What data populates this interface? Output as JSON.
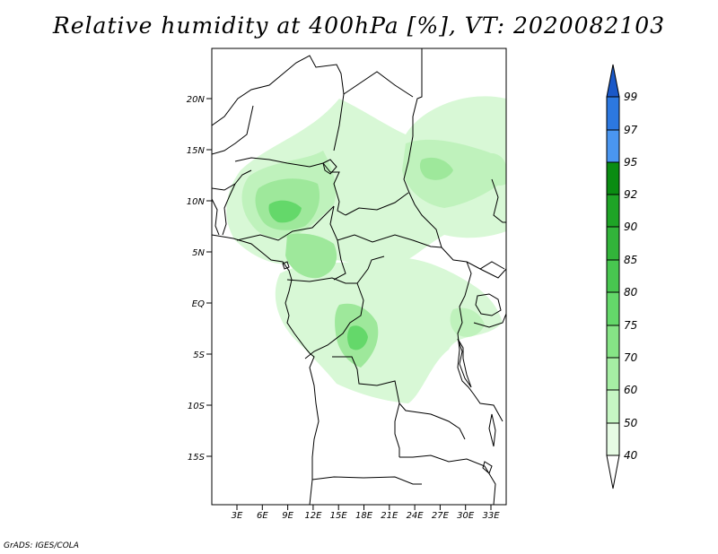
{
  "title": "Relative humidity at 400hPa [%], VT: 2020082103",
  "credit": "GrADS: IGES/COLA",
  "map": {
    "lat_labels": [
      "20N",
      "15N",
      "10N",
      "5N",
      "EQ",
      "5S",
      "10S",
      "15S"
    ],
    "lon_labels": [
      "3E",
      "6E",
      "9E",
      "12E",
      "15E",
      "18E",
      "21E",
      "24E",
      "27E",
      "30E",
      "33E"
    ]
  },
  "colorbar": {
    "labels": [
      "99",
      "97",
      "95",
      "92",
      "90",
      "85",
      "80",
      "75",
      "70",
      "60",
      "50",
      "40"
    ],
    "colors": [
      "#1a58c8",
      "#2c78e0",
      "#4a96f0",
      "#0a8c12",
      "#1ea426",
      "#32b43a",
      "#48c650",
      "#64d86a",
      "#86e486",
      "#a6eea4",
      "#c6f6c4",
      "#e6fbe4",
      "#ffffff"
    ]
  }
}
